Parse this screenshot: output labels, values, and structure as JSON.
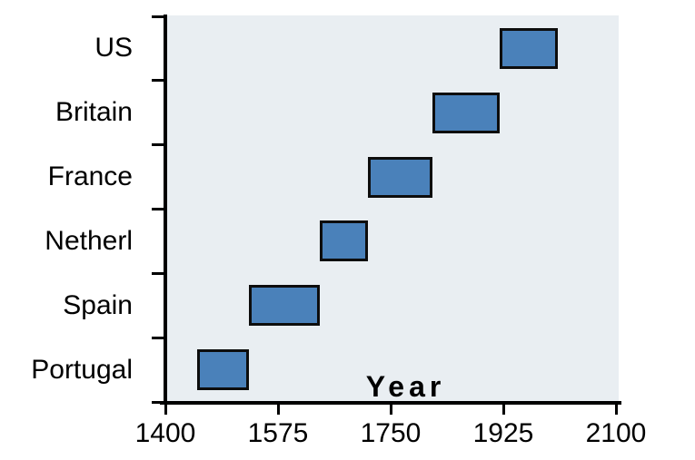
{
  "chart_data": {
    "type": "bar",
    "subtype": "horizontal-timeline-gantt",
    "orientation": "horizontal",
    "title": "",
    "xlabel": "Year",
    "ylabel": "",
    "xlim": [
      1400,
      2100
    ],
    "xticks": [
      1400,
      1575,
      1750,
      1925,
      2100
    ],
    "categories": [
      "US",
      "Britain",
      "France",
      "Netherl",
      "Spain",
      "Portugal"
    ],
    "bars": [
      {
        "label": "US",
        "start": 1920,
        "end": 2010
      },
      {
        "label": "Britain",
        "start": 1815,
        "end": 1920
      },
      {
        "label": "France",
        "start": 1715,
        "end": 1815
      },
      {
        "label": "Netherl",
        "start": 1640,
        "end": 1715
      },
      {
        "label": "Spain",
        "start": 1530,
        "end": 1640
      },
      {
        "label": "Portugal",
        "start": 1450,
        "end": 1530
      }
    ],
    "legend": null,
    "grid": false,
    "colors": {
      "bar_fill": "#4a81ba",
      "bar_border": "#0d0d0d",
      "plot_bg": "#e9eef2",
      "axis": "#000000",
      "text": "#000000"
    }
  }
}
